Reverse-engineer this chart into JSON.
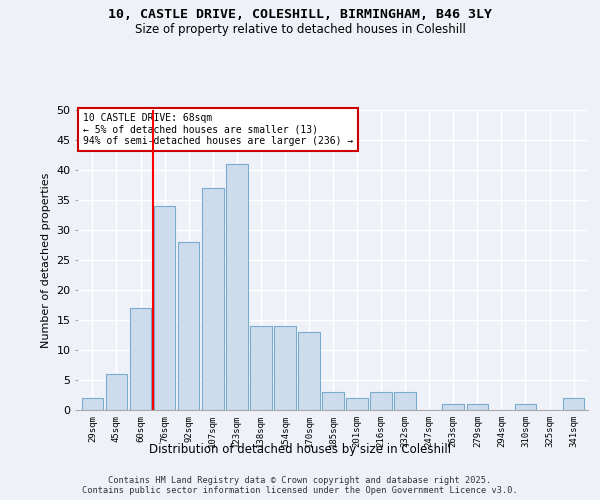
{
  "title_line1": "10, CASTLE DRIVE, COLESHILL, BIRMINGHAM, B46 3LY",
  "title_line2": "Size of property relative to detached houses in Coleshill",
  "xlabel": "Distribution of detached houses by size in Coleshill",
  "ylabel": "Number of detached properties",
  "categories": [
    "29sqm",
    "45sqm",
    "60sqm",
    "76sqm",
    "92sqm",
    "107sqm",
    "123sqm",
    "138sqm",
    "154sqm",
    "170sqm",
    "185sqm",
    "201sqm",
    "216sqm",
    "232sqm",
    "247sqm",
    "263sqm",
    "279sqm",
    "294sqm",
    "310sqm",
    "325sqm",
    "341sqm"
  ],
  "values": [
    2,
    6,
    17,
    34,
    28,
    37,
    41,
    14,
    14,
    13,
    3,
    2,
    3,
    3,
    0,
    1,
    1,
    0,
    1,
    0,
    2
  ],
  "bar_color": "#ccdcec",
  "bar_edge_color": "#7aaacc",
  "background_color": "#eef2f8",
  "grid_color": "#ffffff",
  "ylim": [
    0,
    50
  ],
  "yticks": [
    0,
    5,
    10,
    15,
    20,
    25,
    30,
    35,
    40,
    45,
    50
  ],
  "annotation_box_text": "10 CASTLE DRIVE: 68sqm\n← 5% of detached houses are smaller (13)\n94% of semi-detached houses are larger (236) →",
  "annotation_box_color": "#ffffff",
  "annotation_box_edge_color": "#cc0000",
  "red_line_bar_index": 2.5,
  "footer_line1": "Contains HM Land Registry data © Crown copyright and database right 2025.",
  "footer_line2": "Contains public sector information licensed under the Open Government Licence v3.0."
}
